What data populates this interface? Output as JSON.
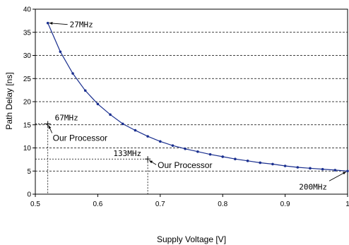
{
  "chart_data": {
    "type": "line",
    "xlabel": "Supply Voltage [V]",
    "ylabel": "Path Delay [ns]",
    "xlim": [
      0.5,
      1.0
    ],
    "ylim": [
      0,
      40
    ],
    "xticks": [
      "0.5",
      "0.6",
      "0.7",
      "0.8",
      "0.9",
      "1"
    ],
    "yticks": [
      "0",
      "5",
      "10",
      "15",
      "20",
      "25",
      "30",
      "35",
      "40"
    ],
    "grid": "horizontal dashed",
    "series": [
      {
        "color": "#1a2f8f",
        "x": [
          0.52,
          0.54,
          0.56,
          0.58,
          0.6,
          0.62,
          0.64,
          0.66,
          0.68,
          0.7,
          0.72,
          0.74,
          0.76,
          0.78,
          0.8,
          0.82,
          0.84,
          0.86,
          0.88,
          0.9,
          0.92,
          0.94,
          0.96,
          0.98,
          1.0
        ],
        "y": [
          37.0,
          30.8,
          26.1,
          22.4,
          19.5,
          17.2,
          15.2,
          13.8,
          12.5,
          11.4,
          10.5,
          9.8,
          9.2,
          8.6,
          8.1,
          7.6,
          7.2,
          6.8,
          6.5,
          6.1,
          5.8,
          5.6,
          5.4,
          5.2,
          5.0
        ]
      }
    ],
    "points": [
      {
        "label": "67MHz",
        "sublabel": "Our Processor",
        "x": 0.52,
        "y": 15.2
      },
      {
        "label": "133MHz",
        "sublabel": "Our Processor",
        "x": 0.68,
        "y": 7.6
      }
    ],
    "annotations": [
      {
        "text": "27MHz",
        "x": 0.52,
        "y": 37.0
      },
      {
        "text": "200MHz",
        "x": 1.0,
        "y": 5.0
      }
    ]
  }
}
